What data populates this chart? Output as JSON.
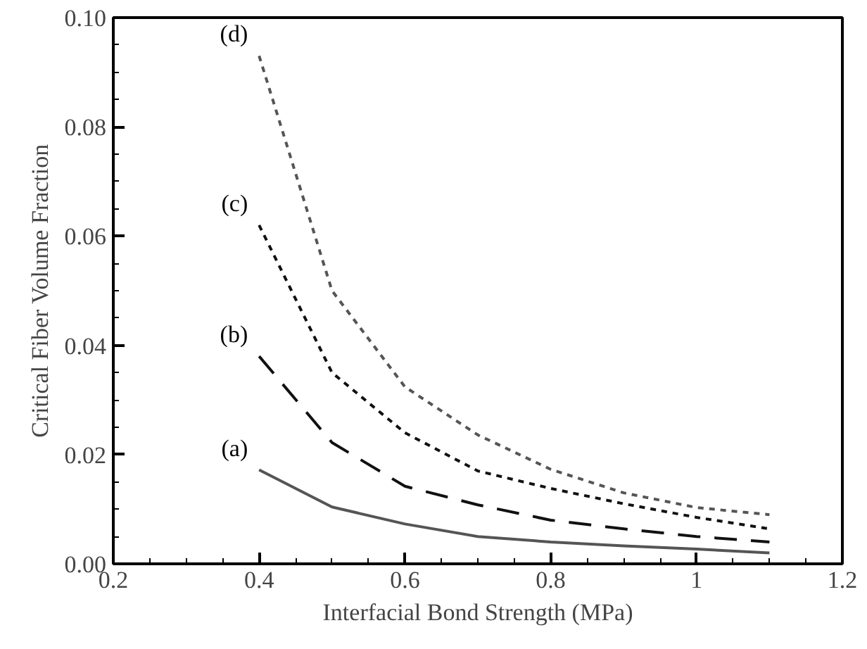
{
  "chart_data": {
    "type": "line",
    "xlabel": "Interfacial Bond Strength (MPa)",
    "ylabel": "Critical Fiber Volume Fraction",
    "x": [
      0.4,
      0.5,
      0.6,
      0.7,
      0.8,
      0.9,
      1.0,
      1.1
    ],
    "series": [
      {
        "name": "(a)",
        "color": "#555555",
        "line_style": "solid",
        "values": [
          0.0172,
          0.0104,
          0.0073,
          0.005,
          0.004,
          0.0033,
          0.0027,
          0.002
        ]
      },
      {
        "name": "(b)",
        "color": "#111111",
        "line_style": "dashed",
        "values": [
          0.038,
          0.0222,
          0.0142,
          0.0108,
          0.008,
          0.0064,
          0.005,
          0.004
        ]
      },
      {
        "name": "(c)",
        "color": "#111111",
        "line_style": "dotted",
        "values": [
          0.062,
          0.035,
          0.024,
          0.017,
          0.0138,
          0.011,
          0.0085,
          0.0064
        ]
      },
      {
        "name": "(d)",
        "color": "#555555",
        "line_style": "dotted",
        "values": [
          0.093,
          0.05,
          0.0324,
          0.0236,
          0.0173,
          0.013,
          0.0103,
          0.009
        ]
      }
    ],
    "xlim": [
      0.2,
      1.2
    ],
    "xticks": [
      0.2,
      0.4,
      0.6,
      0.8,
      {
        "value": 1.0,
        "label": "1"
      },
      1.2
    ],
    "ylim": [
      0,
      0.1
    ],
    "yticks": [
      {
        "value": 0,
        "label": "0.00"
      },
      {
        "value": 0.02,
        "label": "0.02"
      },
      {
        "value": 0.04,
        "label": "0.04"
      },
      {
        "value": 0.06,
        "label": "0.06"
      },
      {
        "value": 0.08,
        "label": "0.08"
      },
      {
        "value": 0.1,
        "label": "0.10"
      }
    ],
    "grid": false,
    "legend": false
  }
}
